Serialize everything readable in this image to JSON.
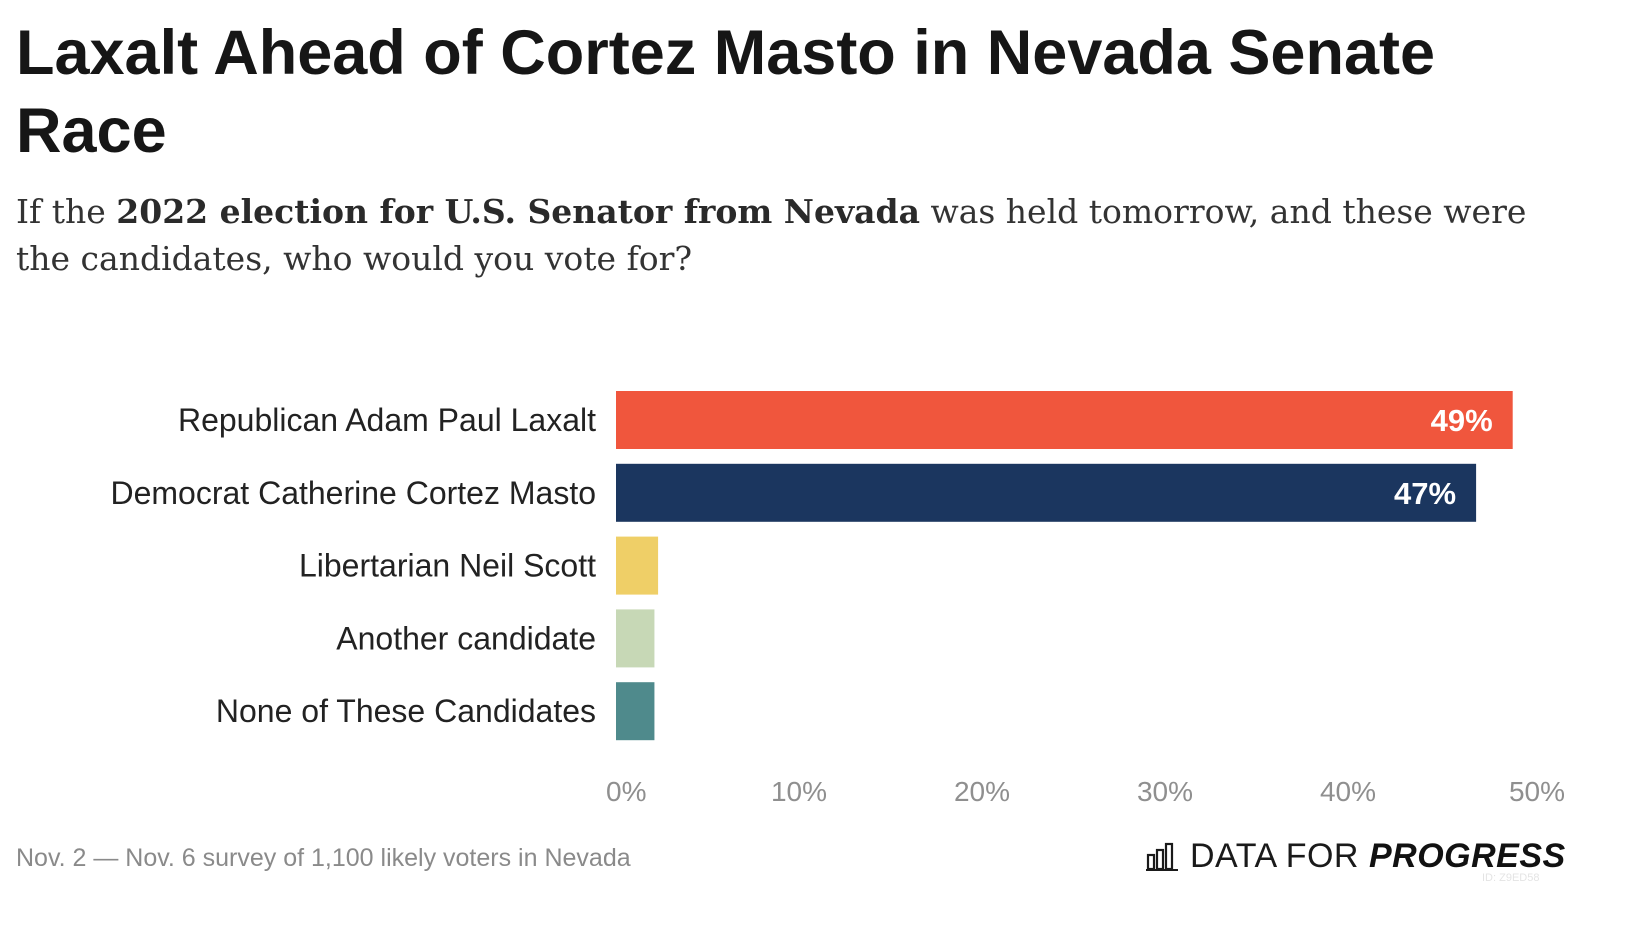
{
  "header": {
    "title": "Laxalt Ahead of Cortez Masto in Nevada Senate Race",
    "subtitle_pre": "If the ",
    "subtitle_bold": "2022 election for U.S. Senator from Nevada",
    "subtitle_post": " was held tomorrow, and these were the candidates, who would you vote for?"
  },
  "chart_data": {
    "type": "bar",
    "orientation": "horizontal",
    "categories": [
      "Republican Adam Paul Laxalt",
      "Democrat Catherine Cortez Masto",
      "Libertarian Neil Scott",
      "Another candidate",
      "None of These Candidates"
    ],
    "values": [
      49,
      47,
      2.3,
      2.1,
      2.1
    ],
    "value_labels": [
      "49%",
      "47%",
      "",
      "",
      ""
    ],
    "colors": [
      "#f0563d",
      "#1b365f",
      "#efcf67",
      "#c7d8b6",
      "#4f8a8c"
    ],
    "xlim": [
      0,
      50
    ],
    "xticks": [
      0,
      10,
      20,
      30,
      40,
      50
    ],
    "xtick_labels": [
      "0%",
      "10%",
      "20%",
      "30%",
      "40%",
      "50%"
    ],
    "title": "Laxalt Ahead of Cortez Masto in Nevada Senate Race",
    "xlabel": "",
    "ylabel": "",
    "grid": false,
    "legend": "none"
  },
  "footer": {
    "source": "Nov. 2 — Nov. 6 survey of 1,100 likely voters in Nevada",
    "brand_light": "DATA FOR",
    "brand_bold": "PROGRESS",
    "brand_icon": "bar-chart-icon",
    "chart_id": "ID: Z9ED58"
  }
}
